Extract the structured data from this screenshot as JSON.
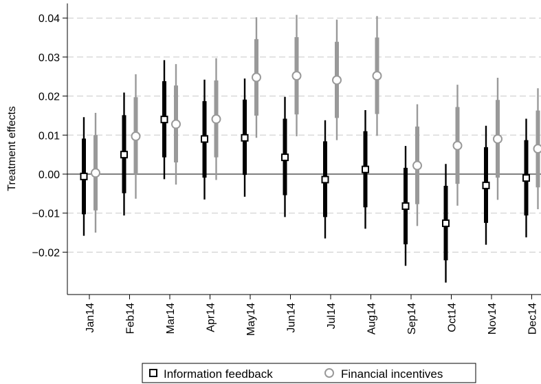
{
  "chart_data": {
    "type": "errorbar",
    "ylabel": "Treatment effects",
    "ylim": [
      -0.03,
      0.042
    ],
    "yticks": [
      0.04,
      0.03,
      0.02,
      0.01,
      0.0,
      -0.01,
      -0.02
    ],
    "ytick_labels": [
      "0.04",
      "0.03",
      "0.02",
      "0.01",
      "0.00",
      "−0.01",
      "−0.02"
    ],
    "grid": "horizontal dashed",
    "reference_line": 0.0,
    "legend": "bottom",
    "categories": [
      "Jan14",
      "Feb14",
      "Mar14",
      "Apr14",
      "May14",
      "Jun14",
      "Jul14",
      "Aug14",
      "Sep14",
      "Oct14",
      "Nov14",
      "Dec14"
    ],
    "series": [
      {
        "name": "Information feedback",
        "marker": "square",
        "color": "#000000",
        "estimate": [
          -0.0006,
          0.005,
          0.014,
          0.009,
          0.0093,
          0.0043,
          -0.0014,
          0.0012,
          -0.0082,
          -0.0126,
          -0.0029,
          -0.001
        ],
        "ci_inner": [
          [
            -0.0103,
            0.0091
          ],
          [
            -0.0049,
            0.0151
          ],
          [
            0.0043,
            0.0238
          ],
          [
            -0.0009,
            0.0187
          ],
          [
            -0.0002,
            0.0191
          ],
          [
            -0.0054,
            0.0142
          ],
          [
            -0.011,
            0.0084
          ],
          [
            -0.0085,
            0.011
          ],
          [
            -0.018,
            0.0016
          ],
          [
            -0.0221,
            -0.003
          ],
          [
            -0.0125,
            0.0069
          ],
          [
            -0.0106,
            0.0087
          ]
        ],
        "ci_outer": [
          [
            -0.0158,
            0.0146
          ],
          [
            -0.0106,
            0.0209
          ],
          [
            -0.0013,
            0.0292
          ],
          [
            -0.0065,
            0.0242
          ],
          [
            -0.0058,
            0.0245
          ],
          [
            -0.011,
            0.0198
          ],
          [
            -0.0165,
            0.0138
          ],
          [
            -0.014,
            0.0164
          ],
          [
            -0.0235,
            0.0072
          ],
          [
            -0.0278,
            0.0026
          ],
          [
            -0.0181,
            0.0124
          ],
          [
            -0.0162,
            0.0142
          ]
        ]
      },
      {
        "name": "Financial incentives",
        "marker": "circle",
        "color": "#999999",
        "estimate": [
          0.0003,
          0.0097,
          0.0128,
          0.0141,
          0.0248,
          0.0252,
          0.0241,
          0.0252,
          0.0022,
          0.0073,
          0.009,
          0.0065
        ],
        "ci_inner": [
          [
            -0.0093,
            0.01
          ],
          [
            0.0,
            0.0197
          ],
          [
            0.003,
            0.0227
          ],
          [
            0.0043,
            0.024
          ],
          [
            0.015,
            0.0346
          ],
          [
            0.0153,
            0.0351
          ],
          [
            0.0144,
            0.0339
          ],
          [
            0.0154,
            0.035
          ],
          [
            -0.0077,
            0.0122
          ],
          [
            -0.0025,
            0.0172
          ],
          [
            -0.0009,
            0.019
          ],
          [
            -0.0034,
            0.0163
          ]
        ],
        "ci_outer": [
          [
            -0.015,
            0.0157
          ],
          [
            -0.0063,
            0.0256
          ],
          [
            -0.0027,
            0.0282
          ],
          [
            -0.0015,
            0.0297
          ],
          [
            0.0093,
            0.0402
          ],
          [
            0.0097,
            0.0408
          ],
          [
            0.0087,
            0.0396
          ],
          [
            0.0098,
            0.0405
          ],
          [
            -0.0133,
            0.0179
          ],
          [
            -0.0081,
            0.0229
          ],
          [
            -0.0066,
            0.0247
          ],
          [
            -0.009,
            0.022
          ]
        ]
      }
    ]
  }
}
